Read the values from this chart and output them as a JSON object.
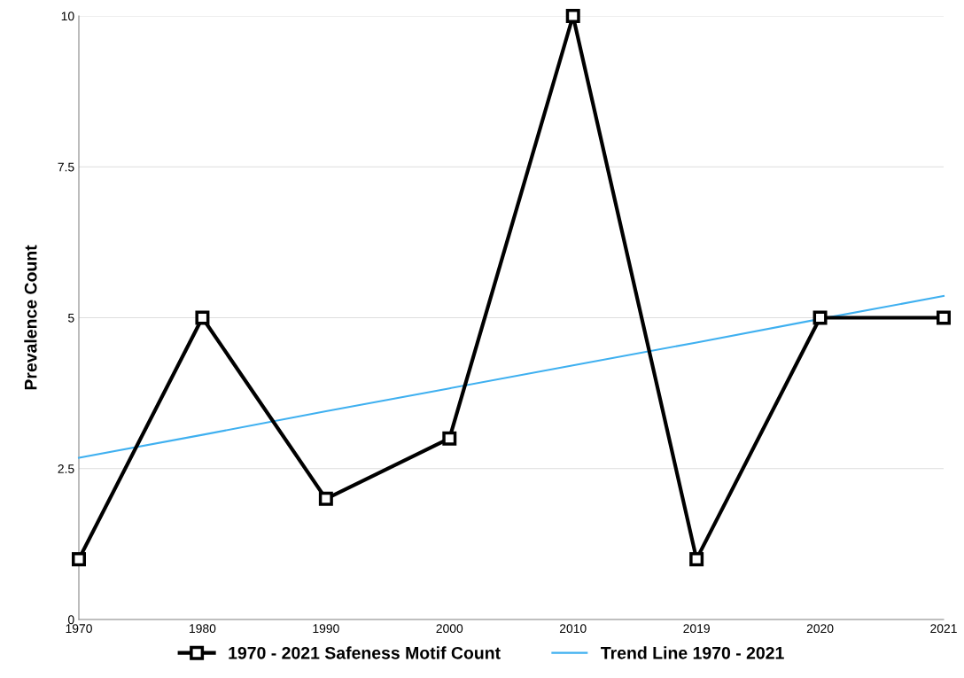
{
  "chart_data": {
    "type": "line",
    "ylabel": "Prevalence Count",
    "categories": [
      "1970",
      "1980",
      "1990",
      "2000",
      "2010",
      "2019",
      "2020",
      "2021"
    ],
    "series": [
      {
        "name": "1970 - 2021 Safeness Motif Count",
        "color": "#000000",
        "values": [
          1,
          5,
          2,
          3,
          10,
          1,
          5,
          5
        ],
        "marker": "square"
      },
      {
        "name": "Trend Line 1970 - 2021",
        "color": "#3fb0f0",
        "values": [
          2.68,
          3.06,
          3.45,
          3.83,
          4.21,
          4.59,
          4.98,
          5.36
        ],
        "marker": "none"
      }
    ],
    "ylim": [
      0,
      10
    ],
    "yticks": [
      0,
      {
        "value": 2.5,
        "label": "2.5"
      },
      5,
      {
        "value": 7.5,
        "label": "7.5"
      },
      10
    ],
    "grid": "y",
    "legend": "bottom",
    "line_style": "solid"
  }
}
